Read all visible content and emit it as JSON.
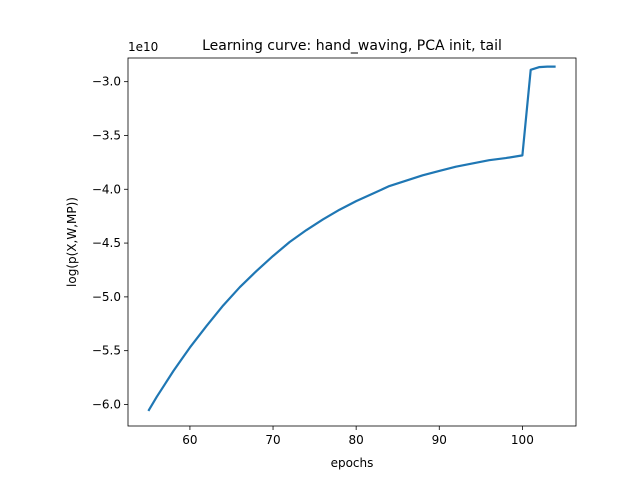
{
  "chart_data": {
    "type": "line",
    "title": "Learning curve: hand_waving, PCA init, tail",
    "xlabel": "epochs",
    "ylabel": "log(p(X,W,MP))",
    "y_multiplier_label": "1e10",
    "xlim": [
      52.55,
      106.45
    ],
    "ylim": [
      -6.2,
      -2.78
    ],
    "x_ticks": [
      60,
      70,
      80,
      90,
      100
    ],
    "x_tick_labels": [
      "60",
      "70",
      "80",
      "90",
      "100"
    ],
    "y_ticks": [
      -6.0,
      -5.5,
      -5.0,
      -4.5,
      -4.0,
      -3.5,
      -3.0
    ],
    "y_tick_labels": [
      "−6.0",
      "−5.5",
      "−5.0",
      "−4.5",
      "−4.0",
      "−3.5",
      "−3.0"
    ],
    "grid": false,
    "series": [
      {
        "color": "#1f77b4",
        "x": [
          55,
          56,
          57,
          58,
          59,
          60,
          62,
          64,
          66,
          68,
          70,
          72,
          74,
          76,
          78,
          80,
          82,
          84,
          86,
          88,
          90,
          92,
          94,
          96,
          98,
          100,
          101,
          102,
          103,
          104
        ],
        "y": [
          -6.06,
          -5.93,
          -5.81,
          -5.69,
          -5.58,
          -5.47,
          -5.27,
          -5.08,
          -4.91,
          -4.76,
          -4.62,
          -4.49,
          -4.38,
          -4.28,
          -4.19,
          -4.11,
          -4.04,
          -3.97,
          -3.92,
          -3.87,
          -3.83,
          -3.79,
          -3.76,
          -3.73,
          -3.71,
          -3.685,
          -2.89,
          -2.865,
          -2.86,
          -2.86
        ]
      }
    ]
  }
}
